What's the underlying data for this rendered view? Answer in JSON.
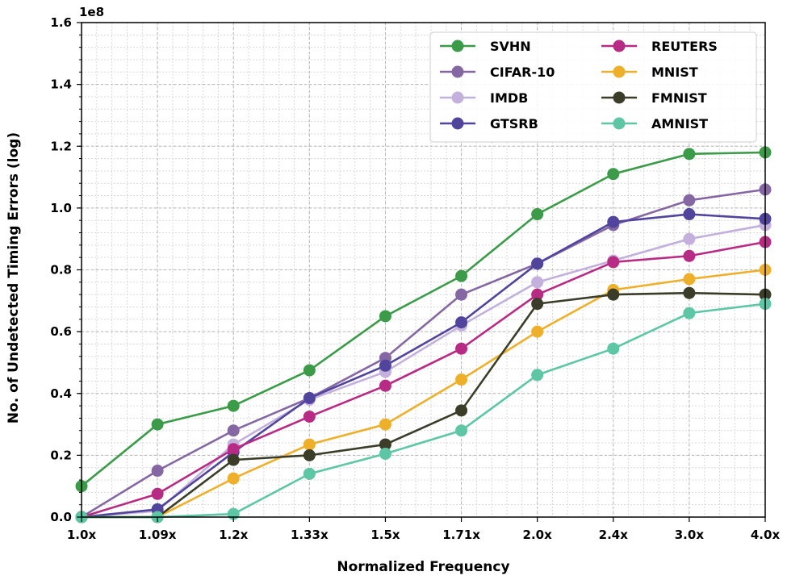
{
  "chart_data": {
    "type": "line",
    "title": "",
    "xlabel": "Normalized Frequency",
    "ylabel": "No. of Undetected Timing Errors (log)",
    "y_offset_label": "1e8",
    "y_scale": 100000000,
    "categories": [
      "1.0x",
      "1.09x",
      "1.2x",
      "1.33x",
      "1.5x",
      "1.71x",
      "2.0x",
      "2.4x",
      "3.0x",
      "4.0x"
    ],
    "ylim": [
      0,
      1.6
    ],
    "yticks": [
      0.0,
      0.2,
      0.4,
      0.6,
      0.8,
      1.0,
      1.2,
      1.4,
      1.6
    ],
    "ytick_labels": [
      "0.0",
      "0.2",
      "0.4",
      "0.6",
      "0.8",
      "1.0",
      "1.2",
      "1.4",
      "1.6"
    ],
    "grid": true,
    "legend_position": "top-right",
    "series": [
      {
        "name": "SVHN",
        "color": "#3b9b48",
        "values": [
          0.1,
          0.3,
          0.36,
          0.475,
          0.65,
          0.78,
          0.98,
          1.11,
          1.175,
          1.18
        ]
      },
      {
        "name": "CIFAR-10",
        "color": "#8567a3",
        "values": [
          0.0,
          0.15,
          0.28,
          0.385,
          0.515,
          0.72,
          0.82,
          0.945,
          1.025,
          1.06
        ]
      },
      {
        "name": "IMDB",
        "color": "#c3b0dc",
        "values": [
          0.0,
          0.02,
          0.235,
          0.38,
          0.47,
          0.62,
          0.76,
          0.83,
          0.9,
          0.945
        ]
      },
      {
        "name": "GTSRB",
        "color": "#51449d",
        "values": [
          0.0,
          0.025,
          0.21,
          0.385,
          0.49,
          0.63,
          0.82,
          0.955,
          0.98,
          0.965
        ]
      },
      {
        "name": "REUTERS",
        "color": "#b82b85",
        "values": [
          0.0,
          0.075,
          0.22,
          0.325,
          0.425,
          0.545,
          0.72,
          0.825,
          0.845,
          0.89
        ]
      },
      {
        "name": "MNIST",
        "color": "#eeb02a",
        "values": [
          0.0,
          0.0,
          0.125,
          0.235,
          0.3,
          0.445,
          0.6,
          0.735,
          0.77,
          0.8
        ]
      },
      {
        "name": "FMNIST",
        "color": "#3b3d29",
        "values": [
          0.0,
          0.0,
          0.185,
          0.2,
          0.235,
          0.345,
          0.69,
          0.72,
          0.725,
          0.72
        ]
      },
      {
        "name": "AMNIST",
        "color": "#5cc6a5",
        "values": [
          0.0,
          0.0,
          0.01,
          0.14,
          0.205,
          0.28,
          0.46,
          0.545,
          0.66,
          0.69
        ]
      }
    ]
  }
}
